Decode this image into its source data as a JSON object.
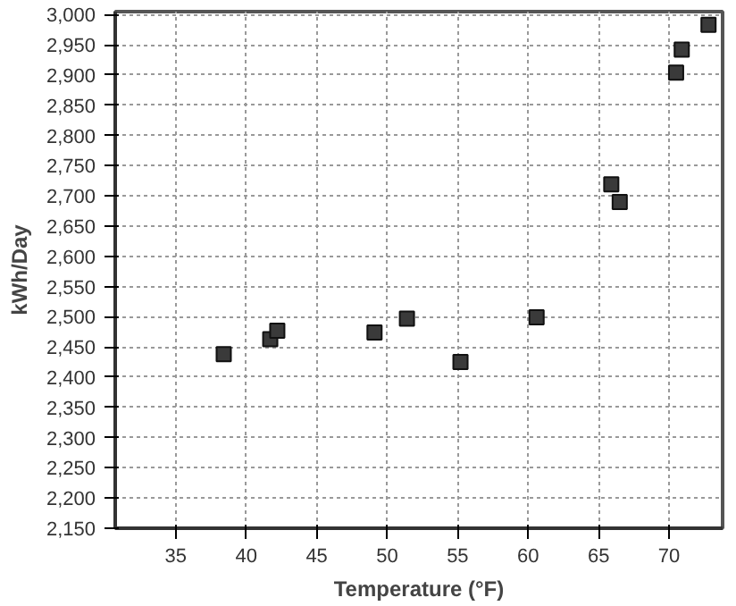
{
  "chart_data": {
    "type": "scatter",
    "xlabel": "Temperature (°F)",
    "ylabel": "kWh/Day",
    "x": [
      38.4,
      41.7,
      42.2,
      49.1,
      51.4,
      55.2,
      60.6,
      65.9,
      66.5,
      70.5,
      70.9,
      72.8
    ],
    "series": [
      {
        "color": "#3a3a3a",
        "values": [
          2438,
          2463,
          2477,
          2474,
          2497,
          2425,
          2499,
          2719,
          2690,
          2904,
          2942,
          2983
        ]
      }
    ],
    "xlim": [
      30.7,
      73.8
    ],
    "xticks": [
      35,
      40,
      45,
      50,
      55,
      60,
      65,
      70
    ],
    "ylim": [
      2150,
      3005
    ],
    "yticks": [
      {
        "value": 2150,
        "label": "2,150"
      },
      {
        "value": 2200,
        "label": "2,200"
      },
      {
        "value": 2250,
        "label": "2,250"
      },
      {
        "value": 2300,
        "label": "2,300"
      },
      {
        "value": 2350,
        "label": "2,350"
      },
      {
        "value": 2400,
        "label": "2,400"
      },
      {
        "value": 2450,
        "label": "2,450"
      },
      {
        "value": 2500,
        "label": "2,500"
      },
      {
        "value": 2550,
        "label": "2,550"
      },
      {
        "value": 2600,
        "label": "2,600"
      },
      {
        "value": 2650,
        "label": "2,650"
      },
      {
        "value": 2700,
        "label": "2,700"
      },
      {
        "value": 2750,
        "label": "2,750"
      },
      {
        "value": 2800,
        "label": "2,800"
      },
      {
        "value": 2850,
        "label": "2,850"
      },
      {
        "value": 2900,
        "label": "2,900"
      },
      {
        "value": 2950,
        "label": "2,950"
      },
      {
        "value": 3000,
        "label": "3,000"
      }
    ],
    "grid": true,
    "marker": "square"
  }
}
